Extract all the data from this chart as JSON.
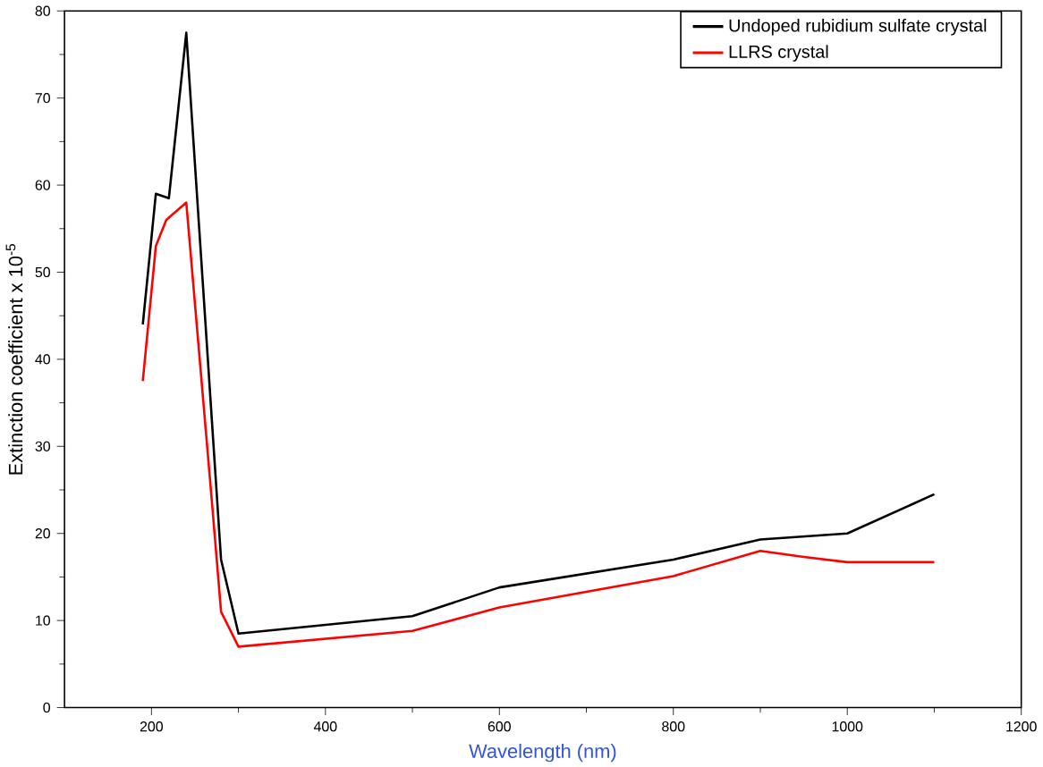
{
  "chart_data": {
    "type": "line",
    "xlabel": "Wavelength (nm)",
    "ylabel": "Extinction coefficient x 10$^{-5}$",
    "xlim": [
      100,
      1200
    ],
    "ylim": [
      0,
      80
    ],
    "xticks": [
      200,
      400,
      600,
      800,
      1000,
      1200
    ],
    "yticks": [
      0,
      10,
      20,
      30,
      40,
      50,
      60,
      70,
      80
    ],
    "legend": "top right",
    "marker": "none",
    "line_style": "solid",
    "grid": false,
    "series": [
      {
        "name": "Undoped rubidium sulfate crystal",
        "color": "#000000",
        "x": [
          190,
          205,
          220,
          240,
          280,
          300,
          500,
          600,
          800,
          900,
          1000,
          1100
        ],
        "values": [
          44,
          59,
          58.5,
          77.5,
          17,
          8.5,
          10.5,
          13.8,
          17,
          19.3,
          20,
          24.5
        ]
      },
      {
        "name": "LLRS crystal",
        "color": "#ff0000",
        "x": [
          190,
          205,
          217,
          240,
          270,
          280,
          300,
          500,
          600,
          800,
          900,
          950,
          1000,
          1100
        ],
        "values": [
          37.5,
          53,
          56,
          58,
          23,
          11,
          7,
          8.8,
          11.5,
          15.1,
          18,
          17.3,
          16.7,
          16.7
        ]
      }
    ]
  }
}
